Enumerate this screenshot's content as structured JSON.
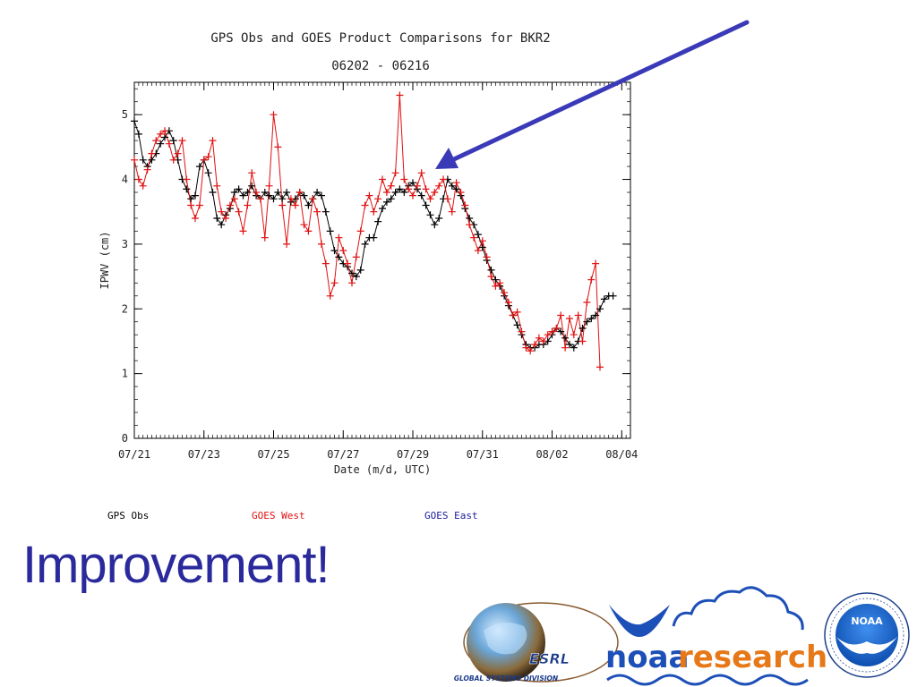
{
  "colors": {
    "gps": "#000000",
    "goes_west": "#e01010",
    "goes_east": "#1a1aa0",
    "arrow": "#3a3ab8",
    "headline": "#2a2a9c",
    "noaa_blue": "#1d4fb8",
    "research_orange": "#e67817"
  },
  "icons": {
    "arrow": "arrow-pointer-icon",
    "globe": "esrl-globe-icon",
    "seal": "noaa-seal-icon"
  },
  "headline": "Improvement!",
  "legend": {
    "gps": "GPS Obs",
    "west": "GOES West",
    "east": "GOES East"
  },
  "logos": {
    "esrl": "ESRL",
    "gsd": "GLOBAL SYSTEMS DIVISION",
    "noaa": "noaa",
    "research": "research",
    "seal": "NOAA"
  },
  "chart_data": {
    "type": "scatter",
    "title": "GPS Obs and GOES Product Comparisons for BKR2",
    "subtitle": "06202 - 06216",
    "xlabel": "Date (m/d, UTC)",
    "ylabel": "IPWV (cm)",
    "x_ticks": [
      "07/21",
      "07/23",
      "07/25",
      "07/27",
      "07/29",
      "07/31",
      "08/02",
      "08/04"
    ],
    "y_ticks": [
      "0",
      "1",
      "2",
      "3",
      "4",
      "5"
    ],
    "ylim": [
      0,
      5.5
    ],
    "xlim": [
      "07/21 00:00",
      "08/04 06:00"
    ],
    "series": [
      {
        "name": "GPS Obs",
        "marker": "plus-line",
        "points": [
          [
            "07/21 00",
            4.9
          ],
          [
            "07/21 03",
            4.7
          ],
          [
            "07/21 06",
            4.3
          ],
          [
            "07/21 09",
            4.2
          ],
          [
            "07/21 12",
            4.3
          ],
          [
            "07/21 15",
            4.4
          ],
          [
            "07/21 18",
            4.55
          ],
          [
            "07/21 21",
            4.65
          ],
          [
            "07/22 00",
            4.75
          ],
          [
            "07/22 03",
            4.6
          ],
          [
            "07/22 06",
            4.3
          ],
          [
            "07/22 09",
            4.0
          ],
          [
            "07/22 12",
            3.85
          ],
          [
            "07/22 15",
            3.7
          ],
          [
            "07/22 18",
            3.75
          ],
          [
            "07/22 21",
            4.2
          ],
          [
            "07/23 00",
            4.3
          ],
          [
            "07/23 03",
            4.1
          ],
          [
            "07/23 06",
            3.8
          ],
          [
            "07/23 09",
            3.4
          ],
          [
            "07/23 12",
            3.3
          ],
          [
            "07/23 15",
            3.45
          ],
          [
            "07/23 18",
            3.55
          ],
          [
            "07/23 21",
            3.8
          ],
          [
            "07/24 00",
            3.85
          ],
          [
            "07/24 03",
            3.75
          ],
          [
            "07/24 06",
            3.8
          ],
          [
            "07/24 09",
            3.9
          ],
          [
            "07/24 12",
            3.75
          ],
          [
            "07/24 15",
            3.7
          ],
          [
            "07/24 18",
            3.8
          ],
          [
            "07/24 21",
            3.75
          ],
          [
            "07/25 00",
            3.7
          ],
          [
            "07/25 03",
            3.8
          ],
          [
            "07/25 06",
            3.7
          ],
          [
            "07/25 09",
            3.8
          ],
          [
            "07/25 12",
            3.65
          ],
          [
            "07/25 15",
            3.7
          ],
          [
            "07/25 18",
            3.8
          ],
          [
            "07/25 21",
            3.75
          ],
          [
            "07/26 00",
            3.6
          ],
          [
            "07/26 03",
            3.7
          ],
          [
            "07/26 06",
            3.8
          ],
          [
            "07/26 09",
            3.75
          ],
          [
            "07/26 12",
            3.5
          ],
          [
            "07/26 15",
            3.2
          ],
          [
            "07/26 18",
            2.9
          ],
          [
            "07/26 21",
            2.8
          ],
          [
            "07/27 00",
            2.7
          ],
          [
            "07/27 03",
            2.65
          ],
          [
            "07/27 06",
            2.55
          ],
          [
            "07/27 09",
            2.5
          ],
          [
            "07/27 12",
            2.6
          ],
          [
            "07/27 15",
            3.0
          ],
          [
            "07/27 18",
            3.1
          ],
          [
            "07/27 21",
            3.1
          ],
          [
            "07/28 00",
            3.35
          ],
          [
            "07/28 03",
            3.55
          ],
          [
            "07/28 06",
            3.65
          ],
          [
            "07/28 09",
            3.7
          ],
          [
            "07/28 12",
            3.8
          ],
          [
            "07/28 15",
            3.85
          ],
          [
            "07/28 18",
            3.8
          ],
          [
            "07/28 21",
            3.9
          ],
          [
            "07/29 00",
            3.95
          ],
          [
            "07/29 03",
            3.85
          ],
          [
            "07/29 06",
            3.75
          ],
          [
            "07/29 09",
            3.6
          ],
          [
            "07/29 12",
            3.45
          ],
          [
            "07/29 15",
            3.3
          ],
          [
            "07/29 18",
            3.4
          ],
          [
            "07/29 21",
            3.7
          ],
          [
            "07/30 00",
            4.0
          ],
          [
            "07/30 03",
            3.9
          ],
          [
            "07/30 06",
            3.85
          ],
          [
            "07/30 09",
            3.75
          ],
          [
            "07/30 12",
            3.55
          ],
          [
            "07/30 15",
            3.4
          ],
          [
            "07/30 18",
            3.3
          ],
          [
            "07/30 21",
            3.15
          ],
          [
            "07/31 00",
            2.95
          ],
          [
            "07/31 03",
            2.75
          ],
          [
            "07/31 06",
            2.6
          ],
          [
            "07/31 09",
            2.45
          ],
          [
            "07/31 12",
            2.35
          ],
          [
            "07/31 15",
            2.2
          ],
          [
            "07/31 18",
            2.05
          ],
          [
            "07/31 21",
            1.9
          ],
          [
            "08/01 00",
            1.75
          ],
          [
            "08/01 03",
            1.6
          ],
          [
            "08/01 06",
            1.45
          ],
          [
            "08/01 09",
            1.4
          ],
          [
            "08/01 12",
            1.4
          ],
          [
            "08/01 15",
            1.45
          ],
          [
            "08/01 18",
            1.45
          ],
          [
            "08/01 21",
            1.5
          ],
          [
            "08/02 00",
            1.6
          ],
          [
            "08/02 03",
            1.7
          ],
          [
            "08/02 06",
            1.65
          ],
          [
            "08/02 09",
            1.55
          ],
          [
            "08/02 12",
            1.45
          ],
          [
            "08/02 15",
            1.4
          ],
          [
            "08/02 18",
            1.5
          ],
          [
            "08/02 21",
            1.7
          ],
          [
            "08/03 00",
            1.8
          ],
          [
            "08/03 03",
            1.85
          ],
          [
            "08/03 06",
            1.9
          ],
          [
            "08/03 09",
            2.0
          ],
          [
            "08/03 12",
            2.15
          ],
          [
            "08/03 15",
            2.2
          ],
          [
            "08/03 18",
            2.2
          ]
        ]
      },
      {
        "name": "GOES West",
        "marker": "plus-line",
        "points": [
          [
            "07/21 00",
            4.3
          ],
          [
            "07/21 03",
            4.0
          ],
          [
            "07/21 06",
            3.9
          ],
          [
            "07/21 09",
            4.15
          ],
          [
            "07/21 12",
            4.4
          ],
          [
            "07/21 15",
            4.6
          ],
          [
            "07/21 18",
            4.7
          ],
          [
            "07/21 21",
            4.75
          ],
          [
            "07/22 00",
            4.55
          ],
          [
            "07/22 03",
            4.3
          ],
          [
            "07/22 06",
            4.4
          ],
          [
            "07/22 09",
            4.6
          ],
          [
            "07/22 12",
            4.0
          ],
          [
            "07/22 15",
            3.6
          ],
          [
            "07/22 18",
            3.4
          ],
          [
            "07/22 21",
            3.6
          ],
          [
            "07/23 00",
            4.3
          ],
          [
            "07/23 03",
            4.35
          ],
          [
            "07/23 06",
            4.6
          ],
          [
            "07/23 09",
            3.9
          ],
          [
            "07/23 12",
            3.5
          ],
          [
            "07/23 15",
            3.4
          ],
          [
            "07/23 18",
            3.6
          ],
          [
            "07/23 21",
            3.7
          ],
          [
            "07/24 00",
            3.5
          ],
          [
            "07/24 03",
            3.2
          ],
          [
            "07/24 06",
            3.6
          ],
          [
            "07/24 09",
            4.1
          ],
          [
            "07/24 12",
            3.8
          ],
          [
            "07/24 15",
            3.7
          ],
          [
            "07/24 18",
            3.1
          ],
          [
            "07/24 21",
            3.9
          ],
          [
            "07/25 00",
            5.0
          ],
          [
            "07/25 03",
            4.5
          ],
          [
            "07/25 06",
            3.6
          ],
          [
            "07/25 09",
            3.0
          ],
          [
            "07/25 12",
            3.7
          ],
          [
            "07/25 15",
            3.6
          ],
          [
            "07/25 18",
            3.8
          ],
          [
            "07/25 21",
            3.3
          ],
          [
            "07/26 00",
            3.2
          ],
          [
            "07/26 03",
            3.7
          ],
          [
            "07/26 06",
            3.5
          ],
          [
            "07/26 09",
            3.0
          ],
          [
            "07/26 12",
            2.7
          ],
          [
            "07/26 15",
            2.2
          ],
          [
            "07/26 18",
            2.4
          ],
          [
            "07/26 21",
            3.1
          ],
          [
            "07/27 00",
            2.9
          ],
          [
            "07/27 03",
            2.7
          ],
          [
            "07/27 06",
            2.4
          ],
          [
            "07/27 09",
            2.8
          ],
          [
            "07/27 12",
            3.2
          ],
          [
            "07/27 15",
            3.6
          ],
          [
            "07/27 18",
            3.75
          ],
          [
            "07/27 21",
            3.5
          ],
          [
            "07/28 00",
            3.7
          ],
          [
            "07/28 03",
            4.0
          ],
          [
            "07/28 06",
            3.8
          ],
          [
            "07/28 09",
            3.9
          ],
          [
            "07/28 12",
            4.1
          ],
          [
            "07/28 15",
            5.3
          ],
          [
            "07/28 18",
            4.0
          ],
          [
            "07/28 21",
            3.85
          ],
          [
            "07/29 00",
            3.75
          ],
          [
            "07/29 03",
            3.9
          ],
          [
            "07/29 06",
            4.1
          ],
          [
            "07/29 09",
            3.85
          ],
          [
            "07/29 12",
            3.7
          ],
          [
            "07/29 15",
            3.8
          ],
          [
            "07/29 18",
            3.9
          ],
          [
            "07/29 21",
            4.0
          ],
          [
            "07/30 00",
            3.7
          ],
          [
            "07/30 03",
            3.5
          ],
          [
            "07/30 06",
            3.95
          ],
          [
            "07/30 09",
            3.8
          ],
          [
            "07/30 12",
            3.6
          ],
          [
            "07/30 15",
            3.3
          ],
          [
            "07/30 18",
            3.1
          ],
          [
            "07/30 21",
            2.9
          ],
          [
            "07/31 00",
            3.05
          ],
          [
            "07/31 03",
            2.8
          ],
          [
            "07/31 06",
            2.5
          ],
          [
            "07/31 09",
            2.35
          ],
          [
            "07/31 12",
            2.4
          ],
          [
            "07/31 15",
            2.25
          ],
          [
            "07/31 18",
            2.1
          ],
          [
            "07/31 21",
            1.9
          ],
          [
            "08/01 00",
            1.95
          ],
          [
            "08/01 03",
            1.65
          ],
          [
            "08/01 06",
            1.4
          ],
          [
            "08/01 09",
            1.35
          ],
          [
            "08/01 12",
            1.45
          ],
          [
            "08/01 15",
            1.55
          ],
          [
            "08/01 18",
            1.5
          ],
          [
            "08/01 21",
            1.6
          ],
          [
            "08/02 00",
            1.65
          ],
          [
            "08/02 03",
            1.7
          ],
          [
            "08/02 06",
            1.9
          ],
          [
            "08/02 09",
            1.4
          ],
          [
            "08/02 12",
            1.85
          ],
          [
            "08/02 15",
            1.6
          ],
          [
            "08/02 18",
            1.9
          ],
          [
            "08/02 21",
            1.5
          ],
          [
            "08/03 00",
            2.1
          ],
          [
            "08/03 03",
            2.45
          ],
          [
            "08/03 06",
            2.7
          ],
          [
            "08/03 09",
            1.1
          ]
        ]
      }
    ]
  }
}
